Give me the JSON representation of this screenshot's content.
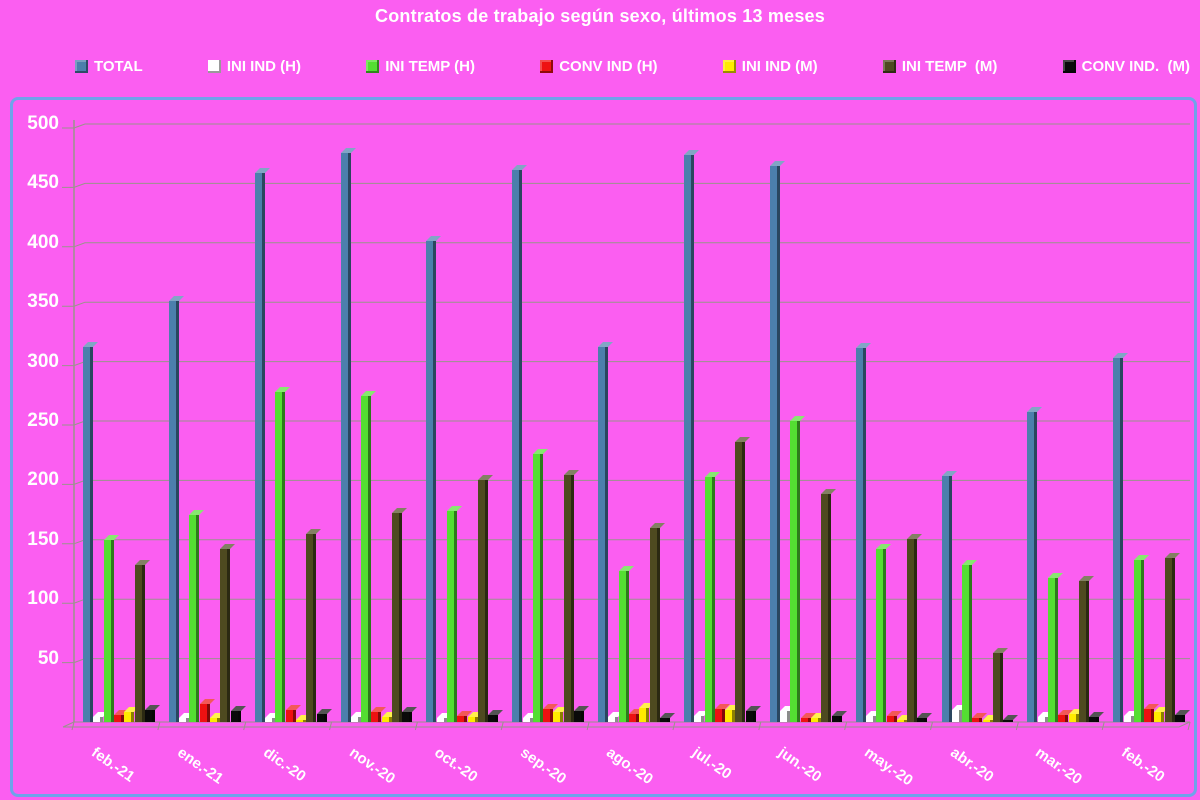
{
  "colors": {
    "background": "#FB5EF1",
    "plot_border": "#6FA3EA",
    "gridline": "#9A938C",
    "text": "#FFFFFF"
  },
  "chart_data": {
    "type": "bar",
    "title": "Contratos de trabajo según sexo, últimos 13 meses",
    "xlabel": "",
    "ylabel": "",
    "ylim": [
      0,
      500
    ],
    "ytick_step": 50,
    "grid": true,
    "legend_position": "top",
    "categories": [
      "feb.-21",
      "ene.-21",
      "dic.-20",
      "nov.-20",
      "oct.-20",
      "sep.-20",
      "ago.-20",
      "jul.-20",
      "jun.-20",
      "may.-20",
      "abr.-20",
      "mar.-20",
      "feb.-20"
    ],
    "series": [
      {
        "name": "TOTAL",
        "color": "#4C7FAC",
        "values": [
          316,
          354,
          462,
          479,
          405,
          465,
          316,
          477,
          468,
          315,
          207,
          261,
          306
        ]
      },
      {
        "name": "INI IND (H)",
        "color": "#FFFFFF",
        "values": [
          4,
          3,
          3,
          4,
          3,
          3,
          4,
          5,
          9,
          5,
          10,
          4,
          5
        ]
      },
      {
        "name": "INI TEMP (H)",
        "color": "#54DE32",
        "values": [
          153,
          174,
          278,
          274,
          178,
          226,
          127,
          206,
          253,
          146,
          132,
          121,
          136
        ]
      },
      {
        "name": "CONV IND (H)",
        "color": "#EE1111",
        "values": [
          6,
          15,
          10,
          8,
          5,
          11,
          7,
          11,
          3,
          5,
          3,
          6,
          11
        ]
      },
      {
        "name": "INI IND (M)",
        "color": "#FFEB00",
        "values": [
          8,
          3,
          2,
          4,
          4,
          8,
          12,
          10,
          3,
          2,
          2,
          7,
          8
        ]
      },
      {
        "name": "INI TEMP  (M)",
        "color": "#4E4A20",
        "values": [
          132,
          146,
          158,
          176,
          204,
          208,
          163,
          236,
          192,
          154,
          58,
          119,
          138
        ]
      },
      {
        "name": "CONV IND.  (M)",
        "color": "#0A0A0A",
        "values": [
          10,
          9,
          7,
          8,
          6,
          9,
          3,
          9,
          5,
          3,
          2,
          4,
          6
        ]
      }
    ]
  }
}
